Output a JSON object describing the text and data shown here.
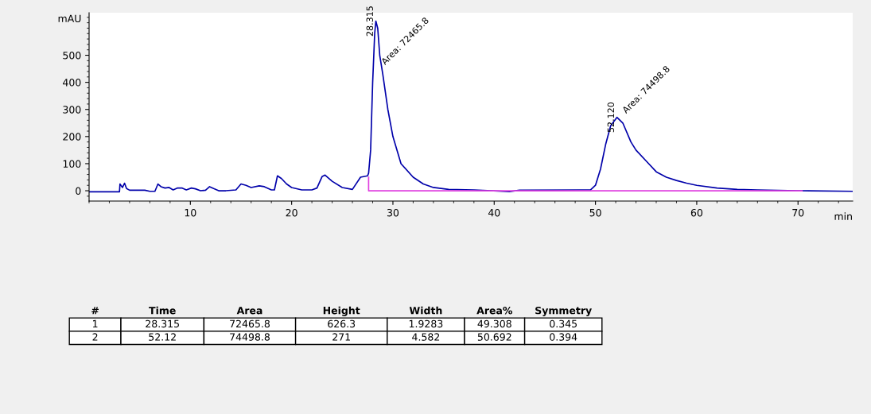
{
  "chart_data": {
    "type": "line",
    "xlabel": "min",
    "ylabel": "mAU",
    "xlim": [
      0,
      75.4
    ],
    "ylim": [
      -38,
      657
    ],
    "xticks": [
      10,
      20,
      30,
      40,
      50,
      60,
      70
    ],
    "yticks": [
      0,
      100,
      200,
      300,
      400,
      500
    ],
    "grid": false,
    "legend": false,
    "marker": "none",
    "line_style": "solid",
    "series": [
      {
        "color": "#0000aa",
        "x": [
          0,
          3.0,
          3.05,
          3.3,
          3.5,
          3.7,
          4,
          5.5,
          6,
          6.5,
          6.8,
          7.1,
          7.5,
          7.9,
          8.3,
          8.7,
          9.2,
          9.6,
          10.1,
          10.5,
          11,
          11.5,
          11.9,
          12.3,
          12.8,
          13.5,
          14.5,
          15,
          15.5,
          16,
          16.8,
          17.3,
          18,
          18.3,
          18.6,
          19,
          19.5,
          20,
          21,
          22,
          22.5,
          23,
          23.3,
          24,
          25,
          26,
          26.8,
          27.5,
          27.6,
          27.8,
          28.0,
          28.2,
          28.315,
          28.5,
          28.7,
          29,
          29.5,
          30,
          30.8,
          32,
          33,
          34,
          35.5,
          38,
          41.5,
          42.5,
          48.5,
          49.5,
          50,
          50.5,
          51,
          51.5,
          52.12,
          52.7,
          53.5,
          54,
          55,
          56,
          57,
          58,
          59,
          60,
          62,
          64,
          66,
          70,
          75.4
        ],
        "values": [
          -4,
          -4,
          25,
          12,
          28,
          8,
          2,
          2,
          -2,
          -2,
          25,
          15,
          10,
          12,
          3,
          10,
          10,
          3,
          10,
          7,
          0,
          2,
          15,
          8,
          0,
          0,
          3,
          25,
          20,
          12,
          18,
          15,
          3,
          3,
          55,
          45,
          25,
          12,
          3,
          3,
          10,
          52,
          58,
          35,
          12,
          5,
          50,
          55,
          65,
          150,
          400,
          580,
          626,
          600,
          500,
          430,
          300,
          200,
          100,
          50,
          25,
          12,
          5,
          3,
          -3,
          2,
          3,
          3,
          20,
          80,
          170,
          240,
          271,
          250,
          180,
          150,
          110,
          70,
          50,
          38,
          28,
          20,
          10,
          5,
          3,
          0,
          -2
        ]
      },
      {
        "color": "#e040e0",
        "x": [
          27.6,
          27.6,
          70.4
        ],
        "values": [
          50,
          0,
          0
        ]
      }
    ],
    "annotations": [
      {
        "text": "28.315",
        "x": 28.315,
        "y": 626
      },
      {
        "text": "Area: 72465.8",
        "x": 28.7,
        "y": 450
      },
      {
        "text": "52.120",
        "x": 52.12,
        "y": 271
      },
      {
        "text": "Area: 74498.8",
        "x": 52.5,
        "y": 271
      },
      "#",
      "Time",
      "Area",
      "Height",
      "Width",
      "Area%",
      "Symmetry",
      "1",
      "28.315",
      "72465.8",
      "626.3",
      "1.9283",
      "49.308",
      "0.345",
      "2",
      "52.12",
      "74498.8",
      "271",
      "4.582",
      "50.692",
      "0.394"
    ]
  }
}
